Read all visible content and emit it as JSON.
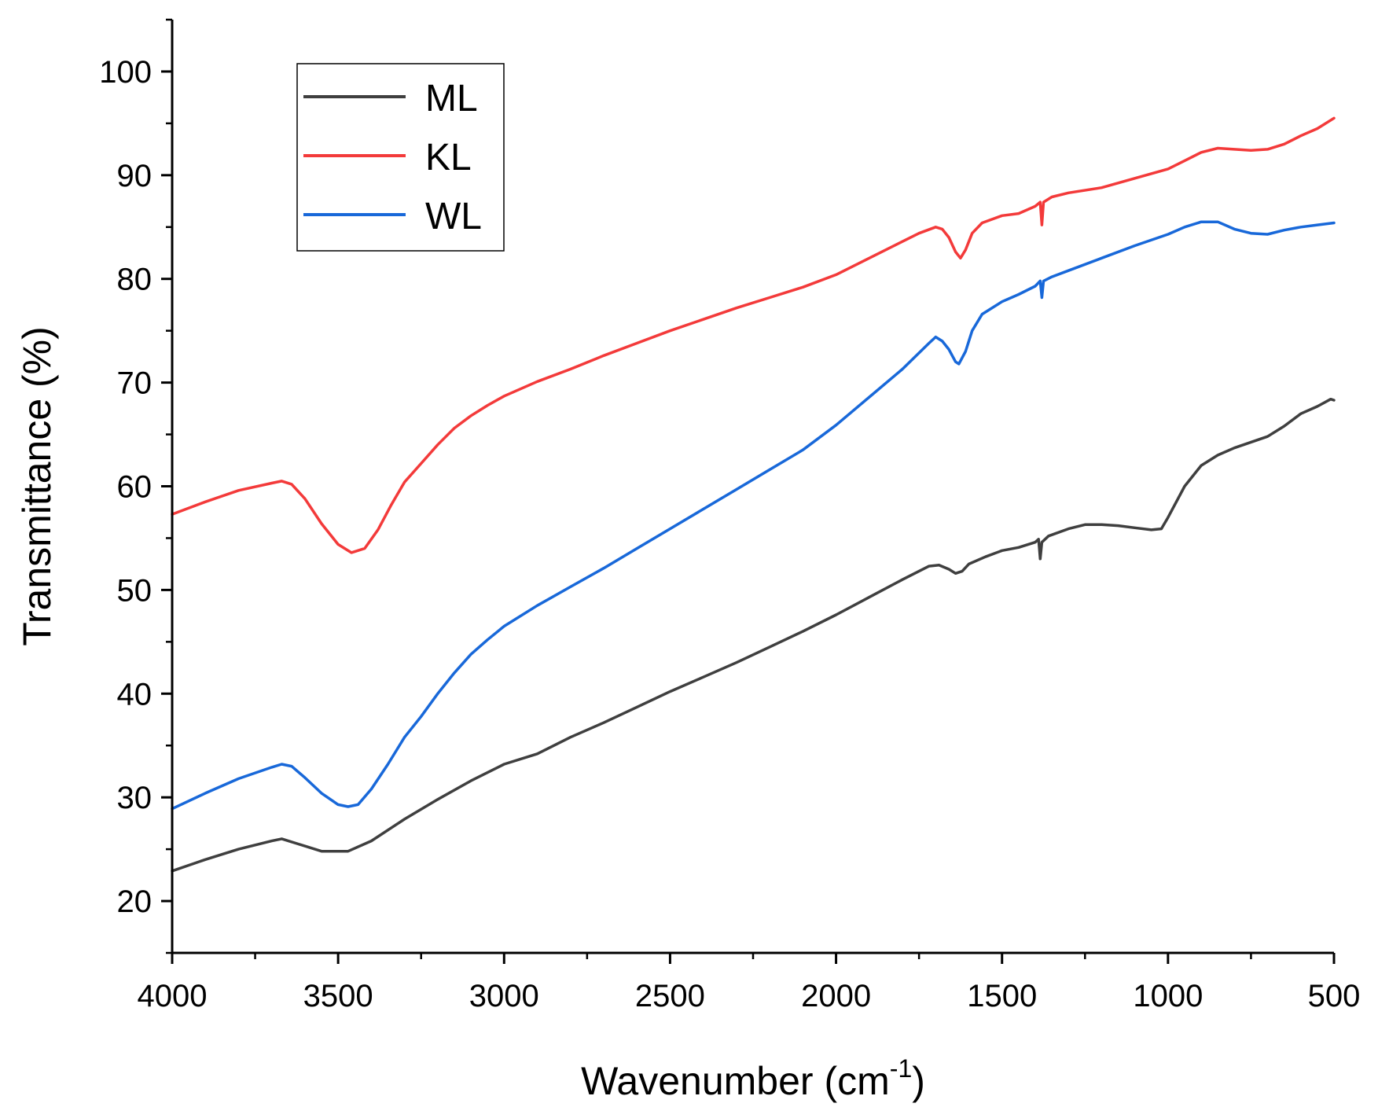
{
  "chart_data": {
    "type": "line",
    "title": "",
    "xlabel": "Wavenumber (cm",
    "xlabel_sup": "-1",
    "xlabel_close": ")",
    "ylabel": "Transmittance (%)",
    "xlim": [
      4000,
      500
    ],
    "ylim": [
      15,
      105
    ],
    "x_reversed": true,
    "xticks": [
      4000,
      3500,
      3000,
      2500,
      2000,
      1500,
      1000,
      500
    ],
    "yticks": [
      20,
      30,
      40,
      50,
      60,
      70,
      80,
      90,
      100
    ],
    "grid": false,
    "legend_position": "top-left",
    "series": [
      {
        "name": "ML",
        "color": "#3f3f3f",
        "points": [
          [
            4000,
            22.9
          ],
          [
            3900,
            24
          ],
          [
            3800,
            25
          ],
          [
            3700,
            25.8
          ],
          [
            3670,
            26
          ],
          [
            3620,
            25.5
          ],
          [
            3550,
            24.8
          ],
          [
            3470,
            24.8
          ],
          [
            3400,
            25.8
          ],
          [
            3300,
            27.9
          ],
          [
            3200,
            29.8
          ],
          [
            3100,
            31.6
          ],
          [
            3000,
            33.2
          ],
          [
            2900,
            34.2
          ],
          [
            2800,
            35.8
          ],
          [
            2700,
            37.2
          ],
          [
            2600,
            38.7
          ],
          [
            2500,
            40.2
          ],
          [
            2400,
            41.6
          ],
          [
            2300,
            43
          ],
          [
            2200,
            44.5
          ],
          [
            2100,
            46
          ],
          [
            2000,
            47.6
          ],
          [
            1900,
            49.3
          ],
          [
            1800,
            51
          ],
          [
            1720,
            52.3
          ],
          [
            1690,
            52.4
          ],
          [
            1660,
            52
          ],
          [
            1640,
            51.6
          ],
          [
            1620,
            51.8
          ],
          [
            1600,
            52.5
          ],
          [
            1550,
            53.2
          ],
          [
            1500,
            53.8
          ],
          [
            1450,
            54.1
          ],
          [
            1400,
            54.6
          ],
          [
            1390,
            54.9
          ],
          [
            1385,
            53
          ],
          [
            1380,
            54.6
          ],
          [
            1360,
            55.2
          ],
          [
            1300,
            55.9
          ],
          [
            1250,
            56.3
          ],
          [
            1200,
            56.3
          ],
          [
            1150,
            56.2
          ],
          [
            1100,
            56
          ],
          [
            1050,
            55.8
          ],
          [
            1020,
            55.9
          ],
          [
            1000,
            57
          ],
          [
            950,
            60
          ],
          [
            900,
            62
          ],
          [
            850,
            63
          ],
          [
            800,
            63.7
          ],
          [
            700,
            64.8
          ],
          [
            650,
            65.8
          ],
          [
            600,
            67
          ],
          [
            550,
            67.7
          ],
          [
            510,
            68.4
          ],
          [
            500,
            68.3
          ]
        ]
      },
      {
        "name": "KL",
        "color": "#f33a3a",
        "points": [
          [
            4000,
            57.3
          ],
          [
            3900,
            58.5
          ],
          [
            3800,
            59.6
          ],
          [
            3700,
            60.3
          ],
          [
            3670,
            60.5
          ],
          [
            3640,
            60.2
          ],
          [
            3600,
            58.8
          ],
          [
            3550,
            56.4
          ],
          [
            3500,
            54.4
          ],
          [
            3460,
            53.6
          ],
          [
            3420,
            54
          ],
          [
            3380,
            55.8
          ],
          [
            3340,
            58.2
          ],
          [
            3300,
            60.4
          ],
          [
            3250,
            62.2
          ],
          [
            3200,
            64
          ],
          [
            3150,
            65.6
          ],
          [
            3100,
            66.8
          ],
          [
            3050,
            67.8
          ],
          [
            3000,
            68.7
          ],
          [
            2900,
            70.1
          ],
          [
            2800,
            71.3
          ],
          [
            2700,
            72.6
          ],
          [
            2600,
            73.8
          ],
          [
            2500,
            75
          ],
          [
            2400,
            76.1
          ],
          [
            2300,
            77.2
          ],
          [
            2200,
            78.2
          ],
          [
            2100,
            79.2
          ],
          [
            2000,
            80.4
          ],
          [
            1900,
            82
          ],
          [
            1800,
            83.6
          ],
          [
            1750,
            84.4
          ],
          [
            1700,
            85
          ],
          [
            1680,
            84.8
          ],
          [
            1660,
            84
          ],
          [
            1640,
            82.6
          ],
          [
            1625,
            82
          ],
          [
            1610,
            82.8
          ],
          [
            1590,
            84.4
          ],
          [
            1560,
            85.4
          ],
          [
            1500,
            86.1
          ],
          [
            1450,
            86.3
          ],
          [
            1400,
            87
          ],
          [
            1385,
            87.4
          ],
          [
            1380,
            85.2
          ],
          [
            1375,
            87.4
          ],
          [
            1350,
            87.9
          ],
          [
            1300,
            88.3
          ],
          [
            1200,
            88.8
          ],
          [
            1100,
            89.7
          ],
          [
            1000,
            90.6
          ],
          [
            950,
            91.4
          ],
          [
            900,
            92.2
          ],
          [
            850,
            92.6
          ],
          [
            800,
            92.5
          ],
          [
            750,
            92.4
          ],
          [
            700,
            92.5
          ],
          [
            650,
            93
          ],
          [
            600,
            93.8
          ],
          [
            550,
            94.5
          ],
          [
            500,
            95.5
          ]
        ]
      },
      {
        "name": "WL",
        "color": "#1868d9",
        "points": [
          [
            4000,
            28.9
          ],
          [
            3900,
            30.4
          ],
          [
            3800,
            31.8
          ],
          [
            3700,
            32.9
          ],
          [
            3670,
            33.2
          ],
          [
            3640,
            33
          ],
          [
            3600,
            31.9
          ],
          [
            3550,
            30.4
          ],
          [
            3500,
            29.3
          ],
          [
            3470,
            29.1
          ],
          [
            3440,
            29.3
          ],
          [
            3400,
            30.8
          ],
          [
            3350,
            33.2
          ],
          [
            3300,
            35.8
          ],
          [
            3250,
            37.8
          ],
          [
            3200,
            40
          ],
          [
            3150,
            42
          ],
          [
            3100,
            43.8
          ],
          [
            3050,
            45.2
          ],
          [
            3000,
            46.5
          ],
          [
            2900,
            48.5
          ],
          [
            2800,
            50.3
          ],
          [
            2700,
            52.1
          ],
          [
            2600,
            54
          ],
          [
            2500,
            55.9
          ],
          [
            2400,
            57.8
          ],
          [
            2300,
            59.7
          ],
          [
            2200,
            61.6
          ],
          [
            2100,
            63.5
          ],
          [
            2000,
            65.9
          ],
          [
            1900,
            68.6
          ],
          [
            1800,
            71.3
          ],
          [
            1720,
            73.8
          ],
          [
            1700,
            74.4
          ],
          [
            1680,
            74
          ],
          [
            1660,
            73.2
          ],
          [
            1640,
            72
          ],
          [
            1630,
            71.8
          ],
          [
            1610,
            73
          ],
          [
            1590,
            75
          ],
          [
            1560,
            76.6
          ],
          [
            1500,
            77.8
          ],
          [
            1450,
            78.5
          ],
          [
            1400,
            79.3
          ],
          [
            1385,
            79.8
          ],
          [
            1380,
            78.2
          ],
          [
            1375,
            79.8
          ],
          [
            1350,
            80.2
          ],
          [
            1300,
            80.8
          ],
          [
            1200,
            82
          ],
          [
            1100,
            83.2
          ],
          [
            1000,
            84.3
          ],
          [
            950,
            85
          ],
          [
            900,
            85.5
          ],
          [
            850,
            85.5
          ],
          [
            800,
            84.8
          ],
          [
            750,
            84.4
          ],
          [
            700,
            84.3
          ],
          [
            650,
            84.7
          ],
          [
            600,
            85
          ],
          [
            550,
            85.2
          ],
          [
            500,
            85.4
          ]
        ]
      }
    ]
  }
}
